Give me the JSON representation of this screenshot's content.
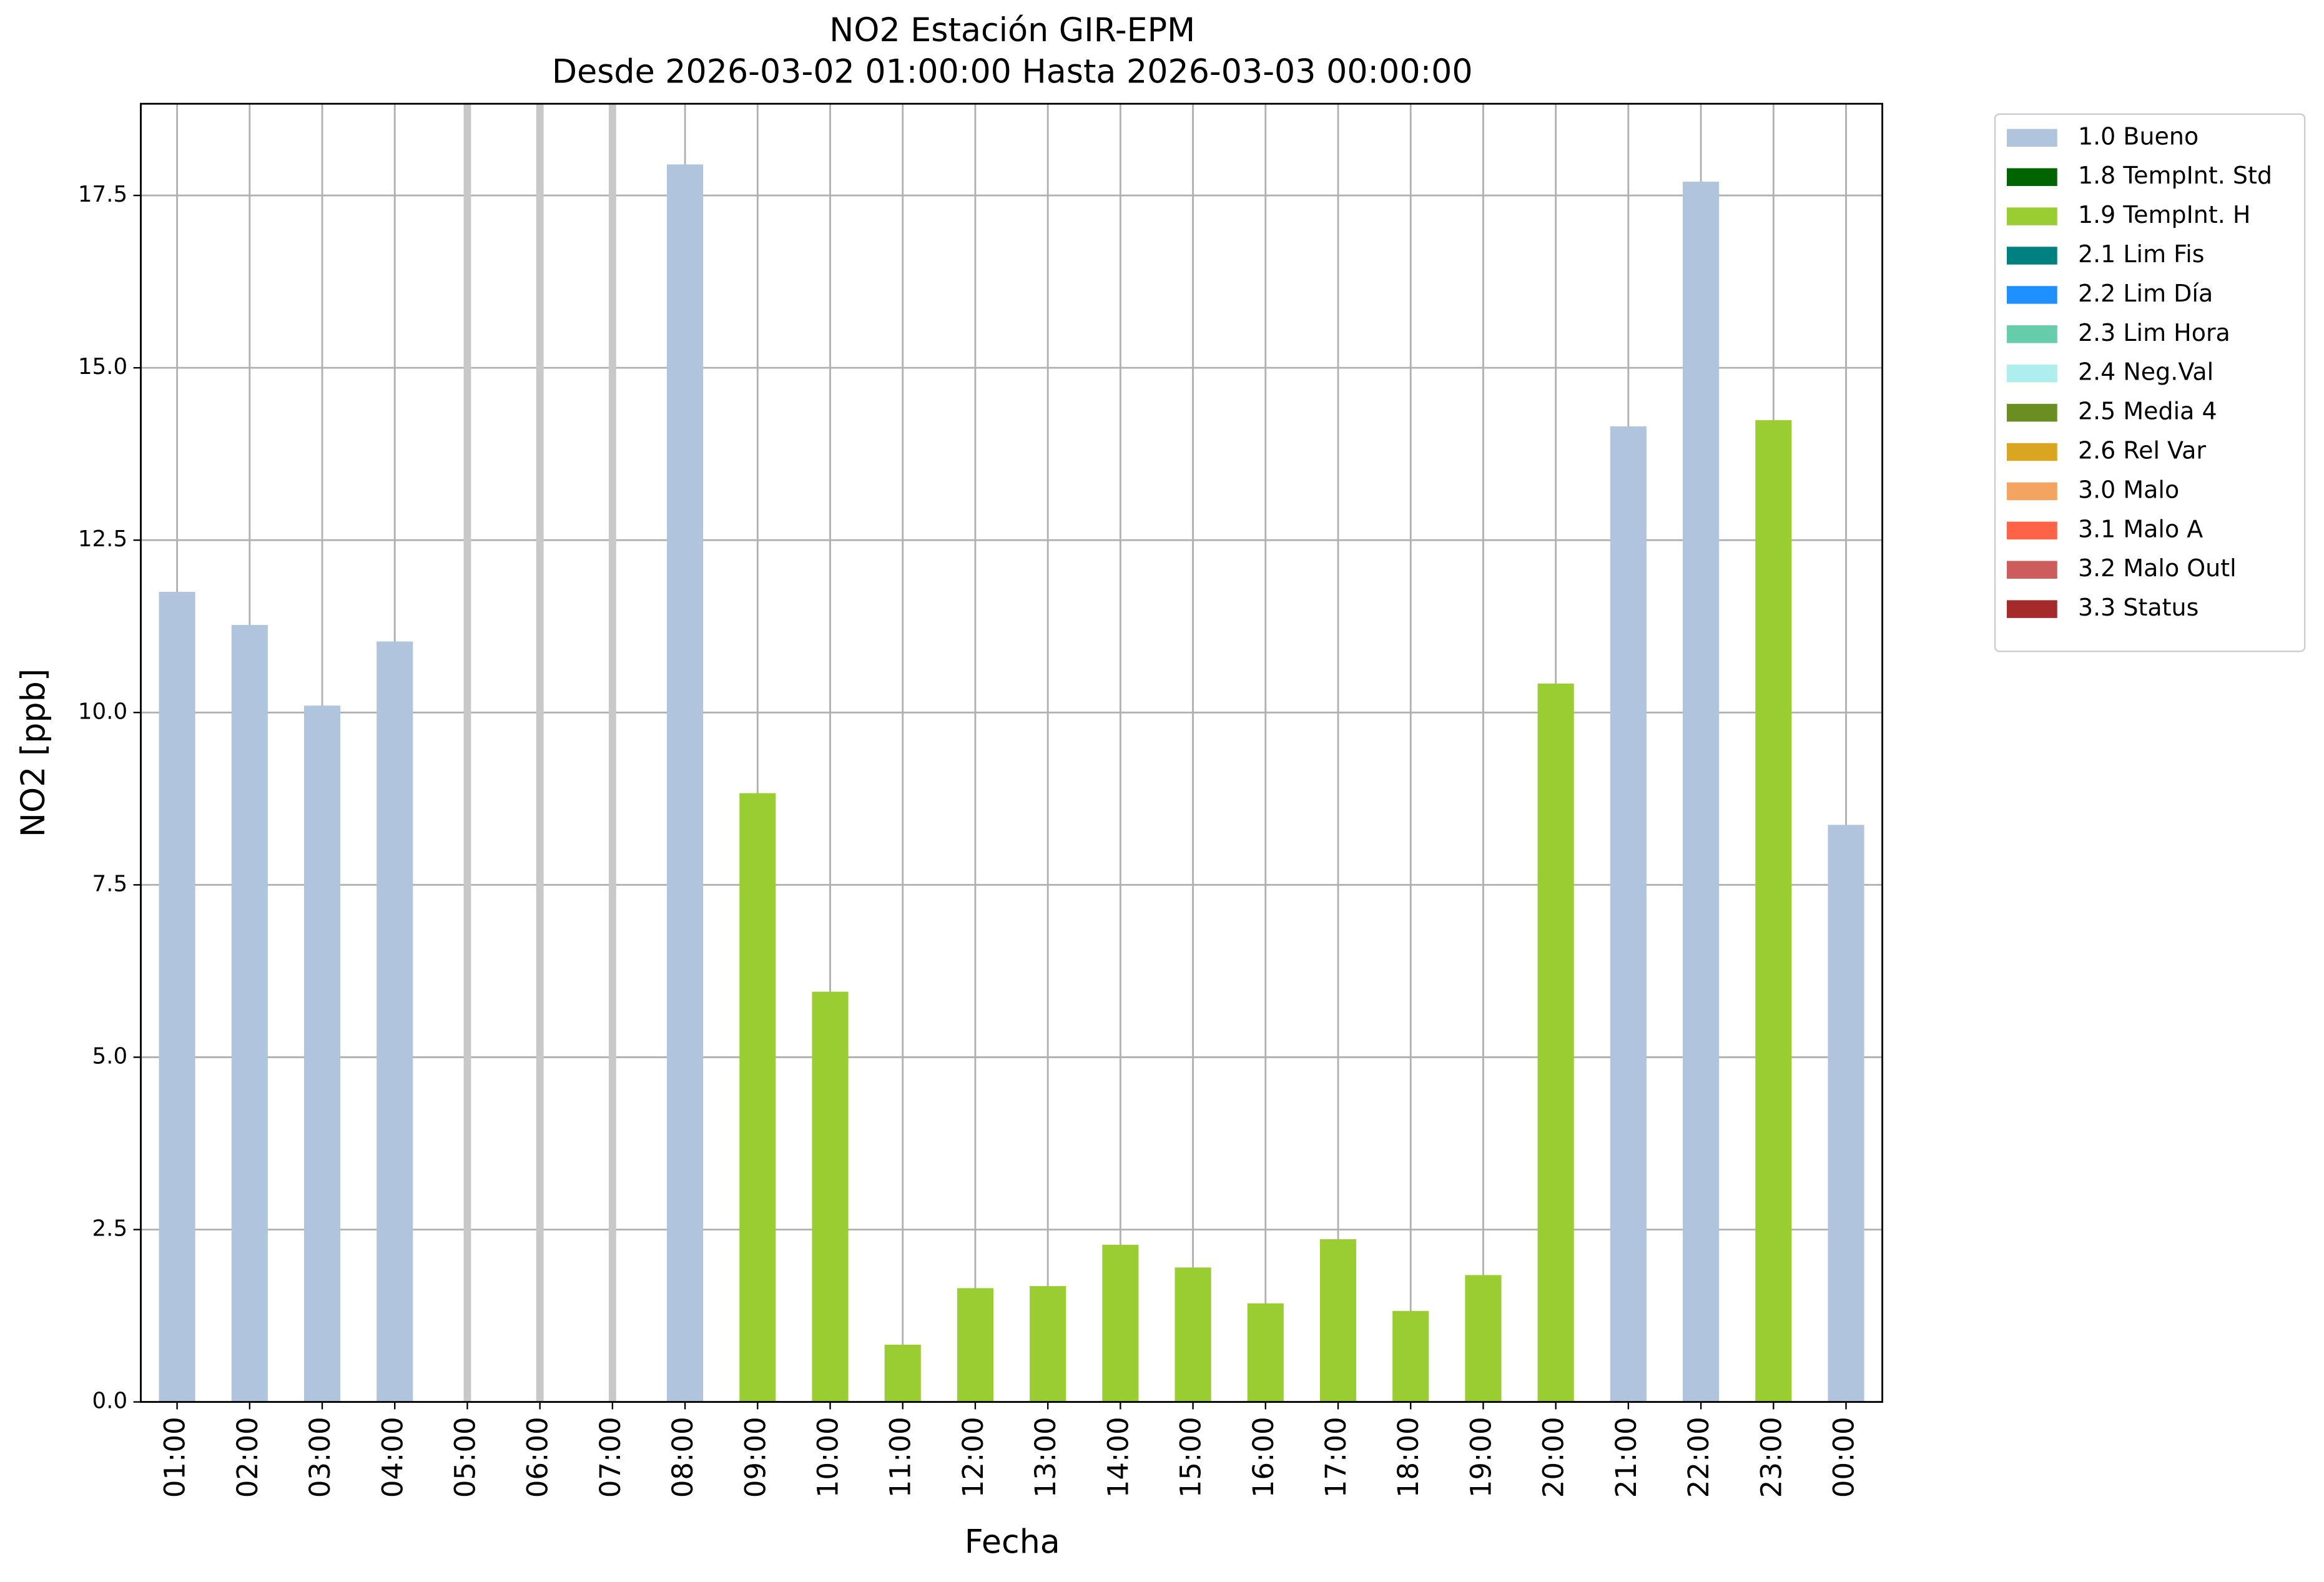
{
  "chart_data": {
    "type": "stacked_bar",
    "title": "NO2 Estación GIR-EPM",
    "subtitle": "Desde 2026-03-02 01:00:00 Hasta 2026-03-03 00:00:00",
    "x_label": "Fecha",
    "y_label": "NO2 [ppb]",
    "categories": [
      "01:00",
      "02:00",
      "03:00",
      "04:00",
      "05:00",
      "06:00",
      "07:00",
      "08:00",
      "09:00",
      "10:00",
      "11:00",
      "12:00",
      "13:00",
      "14:00",
      "15:00",
      "16:00",
      "17:00",
      "18:00",
      "19:00",
      "20:00",
      "21:00",
      "22:00",
      "23:00",
      "00:00"
    ],
    "ylim": [
      0,
      18.83
    ],
    "yticks": [
      {
        "value": 0,
        "label": "0.0"
      },
      2.5,
      {
        "value": 5,
        "label": "5.0"
      },
      7.5,
      {
        "value": 10,
        "label": "10.0"
      },
      12.5,
      {
        "value": 15,
        "label": "15.0"
      },
      17.5
    ],
    "grid": true,
    "legend": "outside right",
    "series": [
      {
        "name": "1.0 Bueno",
        "color": "#b0c4de",
        "values": [
          11.75,
          11.27,
          10.1,
          11.03,
          null,
          null,
          null,
          17.95,
          null,
          null,
          null,
          null,
          null,
          null,
          null,
          null,
          null,
          null,
          null,
          null,
          14.15,
          17.7,
          null,
          8.37
        ]
      },
      {
        "name": "1.8 TempInt. Std",
        "color": "#006400",
        "values": [
          null,
          null,
          null,
          null,
          null,
          null,
          null,
          null,
          null,
          null,
          null,
          null,
          null,
          null,
          null,
          null,
          null,
          null,
          null,
          null,
          null,
          null,
          null,
          null
        ]
      },
      {
        "name": "1.9 TempInt. H",
        "color": "#9acd32",
        "values": [
          null,
          null,
          null,
          null,
          null,
          null,
          null,
          null,
          8.83,
          5.95,
          0.83,
          1.65,
          1.68,
          2.28,
          1.95,
          1.43,
          2.36,
          1.32,
          1.84,
          10.42,
          null,
          null,
          14.24,
          null
        ]
      },
      {
        "name": "2.1 Lim Fis",
        "color": "#008080",
        "values": [
          null,
          null,
          null,
          null,
          null,
          null,
          null,
          null,
          null,
          null,
          null,
          null,
          null,
          null,
          null,
          null,
          null,
          null,
          null,
          null,
          null,
          null,
          null,
          null
        ]
      },
      {
        "name": "2.2 Lim Día",
        "color": "#1e90ff",
        "values": [
          null,
          null,
          null,
          null,
          null,
          null,
          null,
          null,
          null,
          null,
          null,
          null,
          null,
          null,
          null,
          null,
          null,
          null,
          null,
          null,
          null,
          null,
          null,
          null
        ]
      },
      {
        "name": "2.3 Lim Hora",
        "color": "#66cdaa",
        "values": [
          null,
          null,
          null,
          null,
          null,
          null,
          null,
          null,
          null,
          null,
          null,
          null,
          null,
          null,
          null,
          null,
          null,
          null,
          null,
          null,
          null,
          null,
          null,
          null
        ]
      },
      {
        "name": "2.4 Neg.Val",
        "color": "#afeeee",
        "values": [
          null,
          null,
          null,
          null,
          null,
          null,
          null,
          null,
          null,
          null,
          null,
          null,
          null,
          null,
          null,
          null,
          null,
          null,
          null,
          null,
          null,
          null,
          null,
          null
        ]
      },
      {
        "name": "2.5 Media 4",
        "color": "#6b8e23",
        "values": [
          null,
          null,
          null,
          null,
          null,
          null,
          null,
          null,
          null,
          null,
          null,
          null,
          null,
          null,
          null,
          null,
          null,
          null,
          null,
          null,
          null,
          null,
          null,
          null
        ]
      },
      {
        "name": "2.6 Rel Var",
        "color": "#daa520",
        "values": [
          null,
          null,
          null,
          null,
          null,
          null,
          null,
          null,
          null,
          null,
          null,
          null,
          null,
          null,
          null,
          null,
          null,
          null,
          null,
          null,
          null,
          null,
          null,
          null
        ]
      },
      {
        "name": "3.0 Malo",
        "color": "#f4a460",
        "values": [
          null,
          null,
          null,
          null,
          null,
          null,
          null,
          null,
          null,
          null,
          null,
          null,
          null,
          null,
          null,
          null,
          null,
          null,
          null,
          null,
          null,
          null,
          null,
          null
        ]
      },
      {
        "name": "3.1 Malo A",
        "color": "#ff6347",
        "values": [
          null,
          null,
          null,
          null,
          null,
          null,
          null,
          null,
          null,
          null,
          null,
          null,
          null,
          null,
          null,
          null,
          null,
          null,
          null,
          null,
          null,
          null,
          null,
          null
        ]
      },
      {
        "name": "3.2 Malo Outl",
        "color": "#cd5c5c",
        "values": [
          null,
          null,
          null,
          null,
          null,
          null,
          null,
          null,
          null,
          null,
          null,
          null,
          null,
          null,
          null,
          null,
          null,
          null,
          null,
          null,
          null,
          null,
          null,
          null
        ]
      },
      {
        "name": "3.3 Status",
        "color": "#a52a2a",
        "values": [
          null,
          null,
          null,
          null,
          null,
          null,
          null,
          null,
          null,
          null,
          null,
          null,
          null,
          null,
          null,
          null,
          null,
          null,
          null,
          null,
          null,
          null,
          null,
          null
        ]
      }
    ]
  }
}
